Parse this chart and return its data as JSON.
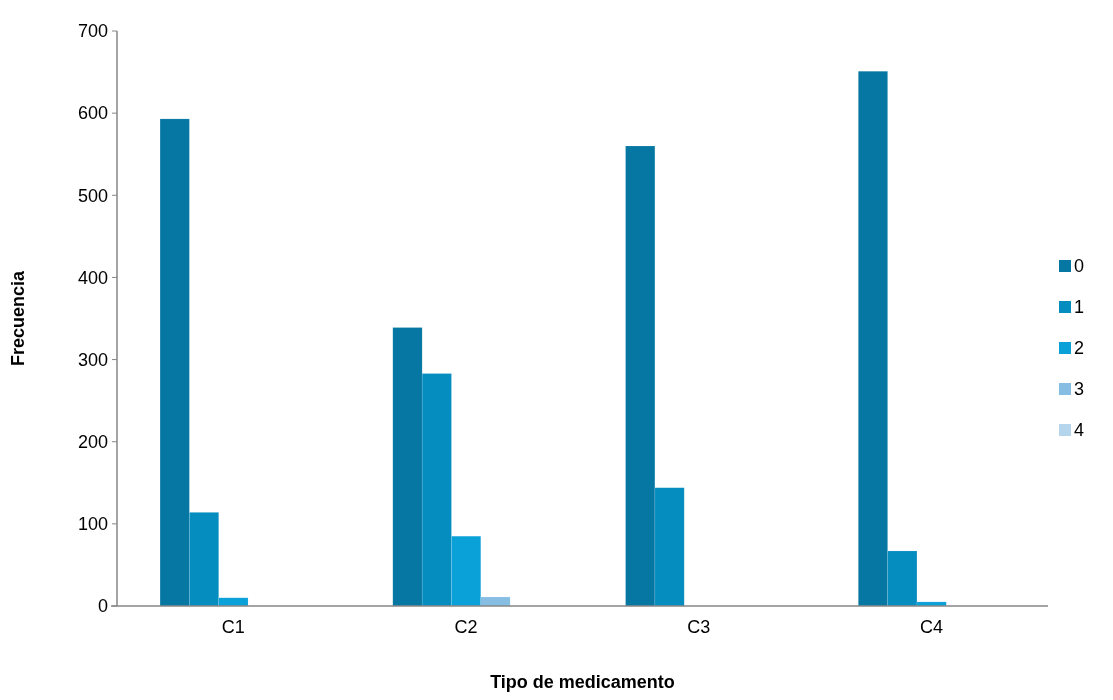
{
  "chart_data": {
    "type": "bar",
    "xlabel": "Tipo de medicamento",
    "ylabel": "Frecuencia",
    "categories": [
      "C1",
      "C2",
      "C3",
      "C4"
    ],
    "series": [
      {
        "name": "0",
        "color": "#0577a2",
        "values": [
          593,
          339,
          560,
          651
        ]
      },
      {
        "name": "1",
        "color": "#068dc0",
        "values": [
          114,
          283,
          144,
          67
        ]
      },
      {
        "name": "2",
        "color": "#0aa1d9",
        "values": [
          10,
          85,
          null,
          5
        ]
      },
      {
        "name": "3",
        "color": "#86bde3",
        "values": [
          null,
          11,
          0,
          0
        ]
      },
      {
        "name": "4",
        "color": "#b5d5ec",
        "values": [
          0,
          null,
          0,
          0
        ]
      }
    ],
    "ylim": [
      0,
      700
    ],
    "yticks": [
      0,
      100,
      200,
      300,
      400,
      500,
      600,
      700
    ],
    "grid": false,
    "legend": "right"
  }
}
